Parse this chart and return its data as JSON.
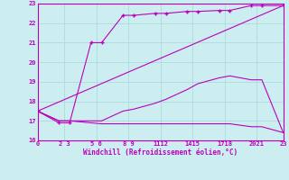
{
  "xlabel": "Windchill (Refroidissement éolien,°C)",
  "bg_color": "#cceef0",
  "grid_color": "#b0dde0",
  "line_color": "#bb00bb",
  "xlim": [
    0,
    23
  ],
  "ylim": [
    16,
    23
  ],
  "yticks": [
    16,
    17,
    18,
    19,
    20,
    21,
    22,
    23
  ],
  "xtick_positions": [
    0,
    2,
    3,
    5,
    6,
    8,
    9,
    11,
    12,
    14,
    15,
    17,
    18,
    20,
    21,
    23
  ],
  "xtick_labels_grouped": [
    "0",
    "2 3",
    "5 6",
    "8 9",
    "1112",
    "1415",
    "1718",
    "2021",
    "23"
  ],
  "xtick_label_positions": [
    0,
    2.5,
    5.5,
    8.5,
    11.5,
    14.5,
    17.5,
    20.5,
    23
  ],
  "lines": [
    {
      "x": [
        0,
        2,
        3,
        5,
        6,
        8,
        9,
        11,
        12,
        14,
        15,
        17,
        18,
        20,
        21,
        23
      ],
      "y": [
        17.5,
        16.9,
        16.9,
        21.0,
        21.0,
        22.4,
        22.4,
        22.5,
        22.5,
        22.6,
        22.6,
        22.65,
        22.65,
        22.9,
        22.9,
        22.9
      ],
      "marker": "+",
      "markersize": 3
    },
    {
      "x": [
        0,
        2,
        3,
        5,
        6,
        8,
        9,
        11,
        12,
        14,
        15,
        17,
        18,
        20,
        21,
        23
      ],
      "y": [
        17.5,
        17.0,
        17.0,
        17.0,
        17.0,
        17.5,
        17.6,
        17.9,
        18.1,
        18.6,
        18.9,
        19.2,
        19.3,
        19.1,
        19.1,
        16.4
      ],
      "marker": null,
      "markersize": 0
    },
    {
      "x": [
        0,
        2,
        3,
        5,
        6,
        8,
        9,
        11,
        12,
        14,
        15,
        17,
        18,
        20,
        21,
        23
      ],
      "y": [
        17.5,
        17.0,
        17.0,
        16.9,
        16.85,
        16.85,
        16.85,
        16.85,
        16.85,
        16.85,
        16.85,
        16.85,
        16.85,
        16.7,
        16.7,
        16.4
      ],
      "marker": null,
      "markersize": 0
    },
    {
      "x": [
        0,
        23
      ],
      "y": [
        17.5,
        22.9
      ],
      "marker": null,
      "markersize": 0
    }
  ]
}
